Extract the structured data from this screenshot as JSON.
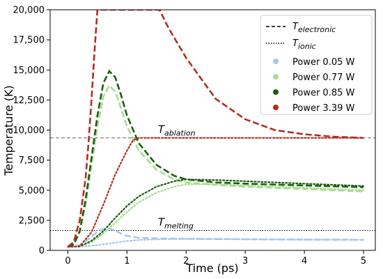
{
  "chart_data": {
    "type": "line",
    "xlabel": "Time (ps)",
    "ylabel": "Temperature (K)",
    "xlim": [
      -0.3,
      5.2
    ],
    "ylim": [
      0,
      20000
    ],
    "xticks": [
      0,
      1,
      2,
      3,
      4,
      5
    ],
    "xtick_labels": [
      "0",
      "1",
      "2",
      "3",
      "4",
      "5"
    ],
    "yticks": [
      0,
      2500,
      5000,
      7500,
      10000,
      12500,
      15000,
      17500,
      20000
    ],
    "ytick_labels": [
      "0",
      "2,500",
      "5,000",
      "7,500",
      "10,000",
      "12,500",
      "15,000",
      "17,500",
      "20,000"
    ],
    "grid": false,
    "legend_position": "top-right",
    "legend": {
      "line_entries": [
        {
          "base": "T",
          "sub": "electronic",
          "style": "dashed"
        },
        {
          "base": "T",
          "sub": "ionic",
          "style": "dotted"
        }
      ],
      "marker_entries": [
        {
          "label": "Power 0.05 W",
          "color": "#a4c8f0"
        },
        {
          "label": "Power 0.77 W",
          "color": "#a6dc8e"
        },
        {
          "label": "Power 0.85 W",
          "color": "#1a5e0e"
        },
        {
          "label": "Power 3.39 W",
          "color": "#b52b1e"
        }
      ]
    },
    "reference_lines": [
      {
        "y": 9350,
        "base": "T",
        "sub": "ablation",
        "label_x": 1.5
      },
      {
        "y": 1650,
        "base": "T",
        "sub": "melting",
        "label_x": 1.5
      }
    ],
    "series": [
      {
        "name": "Power 0.05 W",
        "color": "#a4c8f0",
        "electronic": [
          [
            0,
            300
          ],
          [
            0.1,
            330
          ],
          [
            0.2,
            450
          ],
          [
            0.3,
            750
          ],
          [
            0.4,
            1150
          ],
          [
            0.5,
            1550
          ],
          [
            0.6,
            1780
          ],
          [
            0.7,
            1820
          ],
          [
            0.8,
            1650
          ],
          [
            0.9,
            1400
          ],
          [
            1.0,
            1200
          ],
          [
            1.2,
            1050
          ],
          [
            1.5,
            1000
          ],
          [
            2.0,
            970
          ],
          [
            3.0,
            930
          ],
          [
            4.0,
            900
          ],
          [
            5.0,
            880
          ]
        ],
        "ionic": [
          [
            0,
            300
          ],
          [
            0.2,
            310
          ],
          [
            0.4,
            380
          ],
          [
            0.6,
            500
          ],
          [
            0.8,
            650
          ],
          [
            1.0,
            780
          ],
          [
            1.2,
            860
          ],
          [
            1.5,
            920
          ],
          [
            2.0,
            950
          ],
          [
            3.0,
            930
          ],
          [
            4.0,
            900
          ],
          [
            5.0,
            880
          ]
        ]
      },
      {
        "name": "Power 0.77 W",
        "color": "#a6dc8e",
        "electronic": [
          [
            0,
            300
          ],
          [
            0.1,
            500
          ],
          [
            0.2,
            1500
          ],
          [
            0.3,
            3800
          ],
          [
            0.4,
            7000
          ],
          [
            0.5,
            10300
          ],
          [
            0.6,
            12800
          ],
          [
            0.7,
            13700
          ],
          [
            0.8,
            13200
          ],
          [
            0.9,
            11800
          ],
          [
            1.0,
            10300
          ],
          [
            1.2,
            8300
          ],
          [
            1.5,
            6700
          ],
          [
            1.8,
            5900
          ],
          [
            2.0,
            5650
          ],
          [
            2.5,
            5450
          ],
          [
            3.0,
            5300
          ],
          [
            4.0,
            5100
          ],
          [
            5.0,
            4900
          ]
        ],
        "ionic": [
          [
            0,
            300
          ],
          [
            0.2,
            320
          ],
          [
            0.4,
            700
          ],
          [
            0.6,
            1400
          ],
          [
            0.8,
            2300
          ],
          [
            1.0,
            3200
          ],
          [
            1.2,
            4000
          ],
          [
            1.5,
            4800
          ],
          [
            1.8,
            5300
          ],
          [
            2.0,
            5500
          ],
          [
            2.5,
            5500
          ],
          [
            3.0,
            5400
          ],
          [
            4.0,
            5200
          ],
          [
            5.0,
            5000
          ]
        ]
      },
      {
        "name": "Power 0.85 W",
        "color": "#1a5e0e",
        "electronic": [
          [
            0,
            300
          ],
          [
            0.1,
            500
          ],
          [
            0.2,
            1600
          ],
          [
            0.3,
            4200
          ],
          [
            0.4,
            7700
          ],
          [
            0.5,
            11200
          ],
          [
            0.6,
            13900
          ],
          [
            0.7,
            14900
          ],
          [
            0.8,
            14400
          ],
          [
            0.9,
            12900
          ],
          [
            1.0,
            11200
          ],
          [
            1.2,
            8900
          ],
          [
            1.5,
            7100
          ],
          [
            1.8,
            6200
          ],
          [
            2.0,
            5900
          ],
          [
            2.5,
            5650
          ],
          [
            3.0,
            5550
          ],
          [
            4.0,
            5400
          ],
          [
            5.0,
            5250
          ]
        ],
        "ionic": [
          [
            0,
            300
          ],
          [
            0.2,
            330
          ],
          [
            0.4,
            800
          ],
          [
            0.6,
            1600
          ],
          [
            0.8,
            2700
          ],
          [
            1.0,
            3700
          ],
          [
            1.2,
            4500
          ],
          [
            1.5,
            5300
          ],
          [
            1.8,
            5750
          ],
          [
            2.0,
            5900
          ],
          [
            2.5,
            5850
          ],
          [
            3.0,
            5750
          ],
          [
            4.0,
            5550
          ],
          [
            5.0,
            5350
          ]
        ]
      },
      {
        "name": "Power 3.39 W",
        "color": "#b52b1e",
        "electronic": [
          [
            0,
            300
          ],
          [
            0.1,
            700
          ],
          [
            0.2,
            2500
          ],
          [
            0.3,
            6000
          ],
          [
            0.35,
            9000
          ],
          [
            0.4,
            12500
          ],
          [
            0.45,
            16500
          ],
          [
            0.5,
            20000
          ],
          [
            1.55,
            20000
          ],
          [
            1.7,
            18500
          ],
          [
            2.0,
            16000
          ],
          [
            2.5,
            12600
          ],
          [
            3.0,
            10900
          ],
          [
            3.5,
            10000
          ],
          [
            4.0,
            9650
          ],
          [
            4.5,
            9450
          ],
          [
            5.0,
            9350
          ]
        ],
        "ionic": [
          [
            0,
            300
          ],
          [
            0.2,
            350
          ],
          [
            0.4,
            1500
          ],
          [
            0.6,
            3800
          ],
          [
            0.8,
            6300
          ],
          [
            1.0,
            8300
          ],
          [
            1.1,
            9150
          ],
          [
            1.2,
            9350
          ],
          [
            2.0,
            9350
          ],
          [
            3.0,
            9350
          ],
          [
            4.0,
            9350
          ],
          [
            5.0,
            9350
          ]
        ]
      }
    ]
  }
}
